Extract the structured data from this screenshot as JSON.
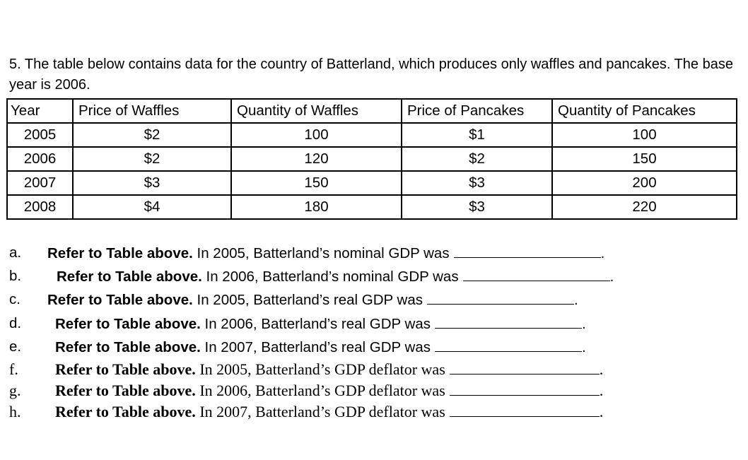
{
  "intro": "5. The table below contains data for the country of Batterland, which produces only waffles and pancakes.  The base year is 2006.",
  "table": {
    "headers": [
      "Year",
      "Price of Waffles",
      "Quantity of Waffles",
      "Price of Pancakes",
      "Quantity of Pancakes"
    ],
    "rows": [
      [
        "2005",
        "$2",
        "100",
        "$1",
        "100"
      ],
      [
        "2006",
        "$2",
        "120",
        "$2",
        "150"
      ],
      [
        "2007",
        "$3",
        "150",
        "$3",
        "200"
      ],
      [
        "2008",
        "$4",
        "180",
        "$3",
        "220"
      ]
    ]
  },
  "questions": [
    {
      "letter": "a.",
      "bold": "Refer to Table above.",
      "text": "In 2005, Batterland’s nominal GDP was",
      "end": "."
    },
    {
      "letter": "b.",
      "bold": "Refer to Table above.",
      "text": "In 2006, Batterland’s nominal GDP was",
      "end": "."
    },
    {
      "letter": "c.",
      "bold": "Refer to Table above.",
      "text": "In 2005, Batterland’s real GDP was",
      "end": "."
    },
    {
      "letter": "d.",
      "bold": "Refer to Table above.",
      "text": "In 2006, Batterland’s real GDP was",
      "end": "."
    },
    {
      "letter": "e.",
      "bold": "Refer to Table above.",
      "text": "In 2007, Batterland’s real GDP was",
      "end": "."
    },
    {
      "letter": "f.",
      "bold": "Refer to Table above.",
      "text": "In 2005, Batterland’s GDP deflator was",
      "end": "."
    },
    {
      "letter": "g.",
      "bold": "Refer to Table above.",
      "text": "In 2006, Batterland’s GDP deflator was",
      "end": "."
    },
    {
      "letter": "h.",
      "bold": "Refer to Table above.",
      "text": "In 2007, Batterland’s GDP deflator was",
      "end": "."
    }
  ]
}
